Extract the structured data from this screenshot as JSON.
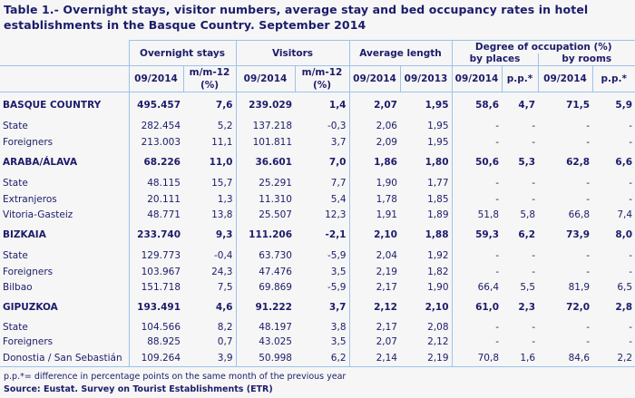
{
  "title": "Table 1.- Overnight stays, visitor numbers, average stay and bed occupancy rates in hotel establishments in the Basque Country. September 2014",
  "headers": {
    "overnight_stays": "Overnight stays",
    "visitors": "Visitors",
    "average_length": "Average length",
    "degree_of_occupation": "Degree of occupation (%)",
    "by_places": "by places",
    "by_rooms": "by rooms",
    "col_0914": "09/2014",
    "col_0913": "09/2013",
    "col_mm12": "m/m-12 (%)",
    "col_pp": "p.p.*"
  },
  "rows": [
    {
      "label": "BASQUE COUNTRY",
      "bold": true,
      "v": [
        "495.457",
        "7,6",
        "239.029",
        "1,4",
        "2,07",
        "1,95",
        "58,6",
        "4,7",
        "71,5",
        "5,9"
      ]
    },
    {
      "label": "State",
      "v": [
        "282.454",
        "5,2",
        "137.218",
        "-0,3",
        "2,06",
        "1,95",
        "-",
        "-",
        "-",
        "-"
      ]
    },
    {
      "label": "Foreigners",
      "v": [
        "213.003",
        "11,1",
        "101.811",
        "3,7",
        "2,09",
        "1,95",
        "-",
        "-",
        "-",
        "-"
      ]
    },
    {
      "label": "ARABA/ÁLAVA",
      "bold": true,
      "v": [
        "68.226",
        "11,0",
        "36.601",
        "7,0",
        "1,86",
        "1,80",
        "50,6",
        "5,3",
        "62,8",
        "6,6"
      ]
    },
    {
      "label": "State",
      "v": [
        "48.115",
        "15,7",
        "25.291",
        "7,7",
        "1,90",
        "1,77",
        "-",
        "-",
        "-",
        "-"
      ]
    },
    {
      "label": "Extranjeros",
      "v": [
        "20.111",
        "1,3",
        "11.310",
        "5,4",
        "1,78",
        "1,85",
        "-",
        "-",
        "-",
        "-"
      ]
    },
    {
      "label": "Vitoria-Gasteiz",
      "v": [
        "48.771",
        "13,8",
        "25.507",
        "12,3",
        "1,91",
        "1,89",
        "51,8",
        "5,8",
        "66,8",
        "7,4"
      ]
    },
    {
      "label": "BIZKAIA",
      "bold": true,
      "v": [
        "233.740",
        "9,3",
        "111.206",
        "-2,1",
        "2,10",
        "1,88",
        "59,3",
        "6,2",
        "73,9",
        "8,0"
      ]
    },
    {
      "label": "State",
      "v": [
        "129.773",
        "-0,4",
        "63.730",
        "-5,9",
        "2,04",
        "1,92",
        "-",
        "-",
        "-",
        "-"
      ]
    },
    {
      "label": "Foreigners",
      "v": [
        "103.967",
        "24,3",
        "47.476",
        "3,5",
        "2,19",
        "1,82",
        "-",
        "-",
        "-",
        "-"
      ]
    },
    {
      "label": "Bilbao",
      "v": [
        "151.718",
        "7,5",
        "69.869",
        "-5,9",
        "2,17",
        "1,90",
        "66,4",
        "5,5",
        "81,9",
        "6,5"
      ]
    },
    {
      "label": "GIPUZKOA",
      "bold": true,
      "v": [
        "193.491",
        "4,6",
        "91.222",
        "3,7",
        "2,12",
        "2,10",
        "61,0",
        "2,3",
        "72,0",
        "2,8"
      ]
    },
    {
      "label": "State",
      "v": [
        "104.566",
        "8,2",
        "48.197",
        "3,8",
        "2,17",
        "2,08",
        "-",
        "-",
        "-",
        "-"
      ]
    },
    {
      "label": "Foreigners",
      "v": [
        "88.925",
        "0,7",
        "43.025",
        "3,5",
        "2,07",
        "2,12",
        "-",
        "-",
        "-",
        "-"
      ]
    },
    {
      "label": "Donostia / San Sebastián",
      "v": [
        "109.264",
        "3,9",
        "50.998",
        "6,2",
        "2,14",
        "2,19",
        "70,8",
        "1,6",
        "84,6",
        "2,2"
      ]
    }
  ],
  "footnote": "p.p.*= difference in percentage points on the same month of the previous year",
  "source": "Source: Eustat. Survey on Tourist Establishments (ETR)",
  "colors": {
    "text": "#1c1c6b",
    "border": "#9cc3ec",
    "background": "#f6f6f6"
  }
}
